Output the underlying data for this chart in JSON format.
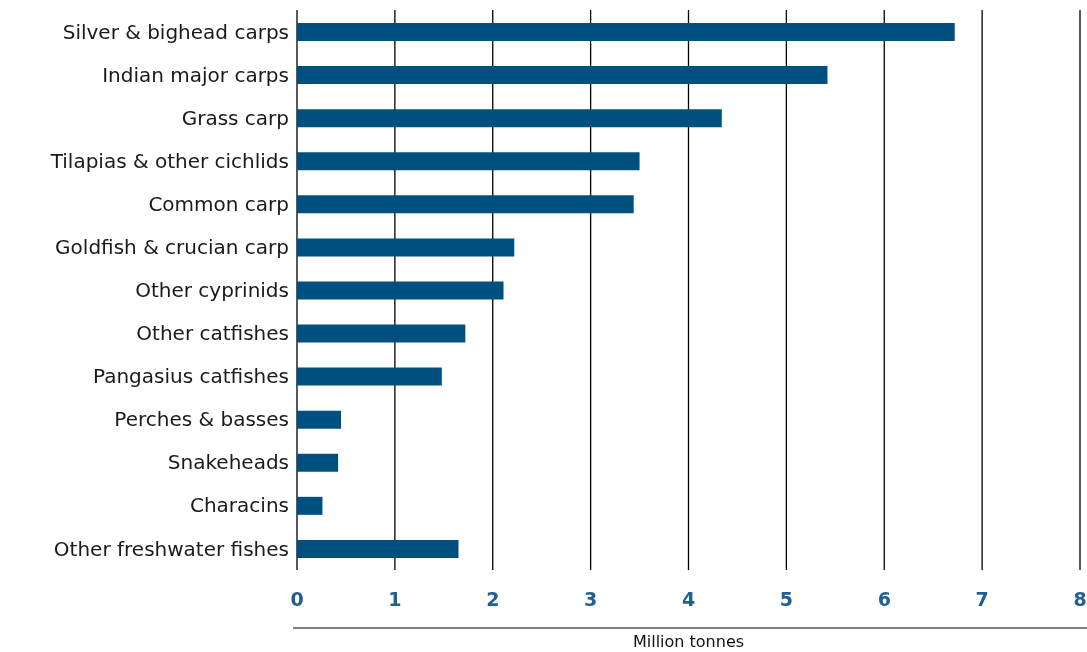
{
  "chart_data": {
    "type": "bar",
    "orientation": "horizontal",
    "xlabel": "Million tonnes",
    "categories": [
      "Silver & bighead carps",
      "Indian major carps",
      "Grass carp",
      "Tilapias & other cichlids",
      "Common carp",
      "Goldfish & crucian carp",
      "Other cyprinids",
      "Other catfishes",
      "Pangasius catfishes",
      "Perches & basses",
      "Snakeheads",
      "Characins",
      "Other freshwater fishes"
    ],
    "values": [
      6.72,
      5.42,
      4.34,
      3.5,
      3.44,
      2.22,
      2.11,
      1.72,
      1.48,
      0.45,
      0.42,
      0.26,
      1.65
    ],
    "color": "#00507f",
    "xlim": [
      0,
      8
    ],
    "xticks": [
      0,
      1,
      2,
      3,
      4,
      5,
      6,
      7,
      8
    ],
    "grid": "x"
  }
}
